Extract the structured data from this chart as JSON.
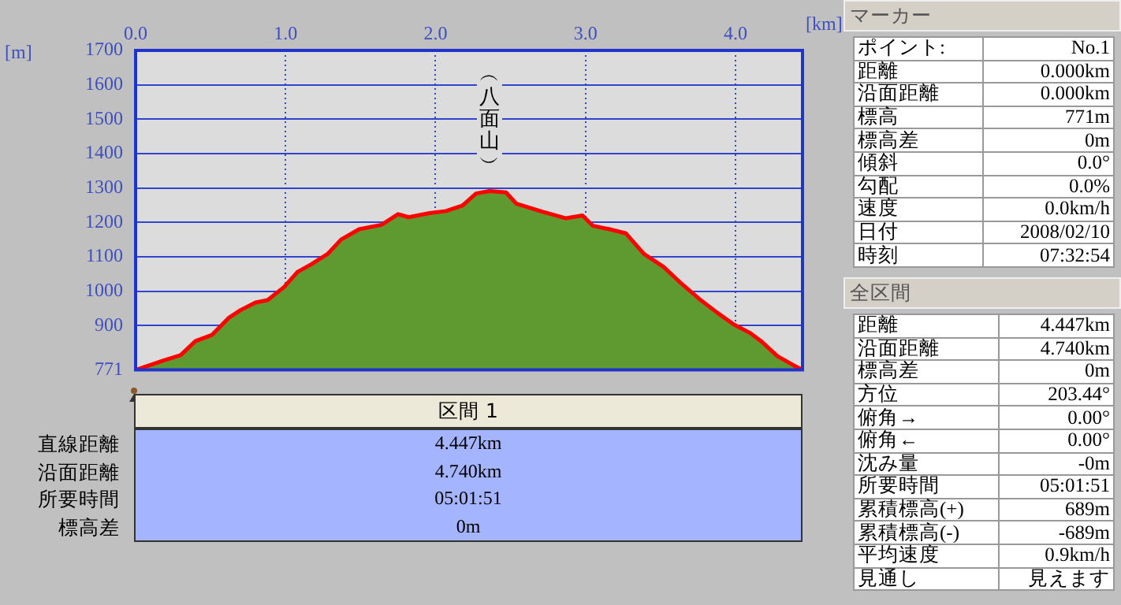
{
  "chart_data": [
    {
      "type": "area",
      "xlabel": "[km]",
      "ylabel": "[m]",
      "x": [
        0,
        0.19,
        0.3,
        0.4,
        0.51,
        0.62,
        0.7,
        0.8,
        0.88,
        0.99,
        1.08,
        1.17,
        1.28,
        1.37,
        1.49,
        1.64,
        1.75,
        1.82,
        1.96,
        2.07,
        2.18,
        2.27,
        2.36,
        2.47,
        2.54,
        2.63,
        2.72,
        2.87,
        2.98,
        3.05,
        3.16,
        3.27,
        3.39,
        3.52,
        3.63,
        3.76,
        3.88,
        3.99,
        4.1,
        4.17,
        4.28,
        4.39,
        4.447
      ],
      "series": [
        {
          "color": "#5f9a30",
          "values": [
            771,
            799,
            814,
            855,
            873,
            922,
            945,
            967,
            974,
            1012,
            1056,
            1078,
            1108,
            1150,
            1180,
            1193,
            1224,
            1215,
            1227,
            1233,
            1249,
            1284,
            1291,
            1287,
            1254,
            1242,
            1230,
            1212,
            1220,
            1190,
            1180,
            1168,
            1108,
            1071,
            1026,
            977,
            937,
            903,
            878,
            855,
            811,
            784,
            771
          ]
        }
      ],
      "xlim": [
        0,
        4.447
      ],
      "xticks": [
        {
          "value": 0,
          "label": "0.0"
        },
        {
          "value": 1,
          "label": "1.0"
        },
        {
          "value": 2,
          "label": "2.0"
        },
        {
          "value": 3,
          "label": "3.0"
        },
        {
          "value": 4,
          "label": "4.0"
        }
      ],
      "ylim": [
        771,
        1700
      ],
      "yticks": [
        771,
        900,
        1000,
        1100,
        1200,
        1300,
        1400,
        1500,
        1600,
        1700
      ],
      "grid": true,
      "annotations": [
        {
          "text": "︵八面山︶",
          "x": 2.36,
          "y": 1291
        }
      ]
    },
    {
      "type": "other",
      "title": "マーカー",
      "annotations": [
        "ポイント:",
        "No.1",
        "距離",
        "0.000km",
        "沿面距離",
        "0.000km",
        "標高",
        "771m",
        "標高差",
        "0m",
        "傾斜",
        "0.0°",
        "勾配",
        "0.0%",
        "速度",
        "0.0km/h",
        "日付",
        "2008/02/10",
        "時刻",
        "07:32:54"
      ]
    },
    {
      "type": "other",
      "title": "全区間",
      "annotations": [
        "距離",
        "4.447km",
        "沿面距離",
        "4.740km",
        "標高差",
        "0m",
        "方位",
        "203.44°",
        "俯角→",
        "0.00°",
        "俯角←",
        "0.00°",
        "沈み量",
        "-0m",
        "所要時間",
        "05:01:51",
        "累積標高(+)",
        "689m",
        "累積標高(-)",
        "-689m",
        "平均速度",
        "0.9km/h",
        "見通し",
        "見えます"
      ]
    },
    {
      "type": "other",
      "title": "区間 1",
      "annotations": [
        "直線距離",
        "4.447km",
        "沿面距離",
        "4.740km",
        "所要時間",
        "05:01:51",
        "標高差",
        "0m"
      ]
    }
  ]
}
